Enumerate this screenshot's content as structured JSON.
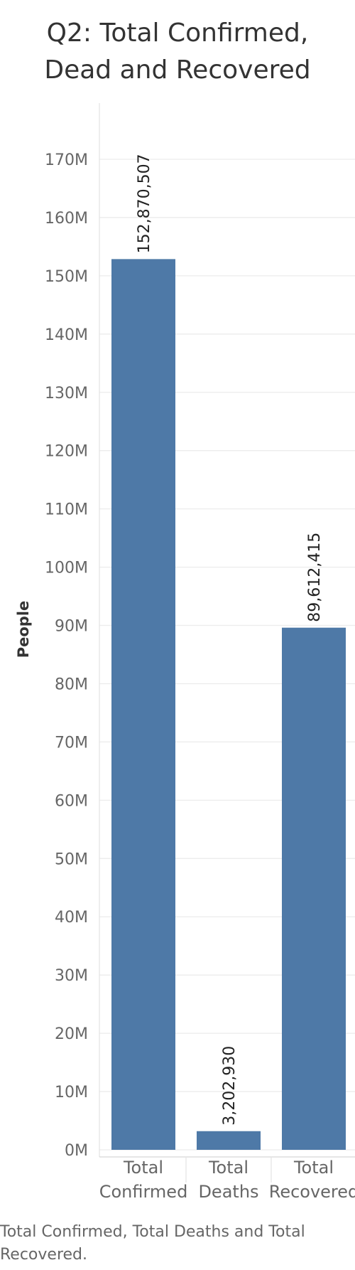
{
  "chart_data": {
    "type": "bar",
    "title_lines": [
      "Q2: Total Confirmed,",
      "Dead and Recovered"
    ],
    "ylabel": "People",
    "xlabel": "",
    "categories": [
      [
        "Total",
        "Confirmed"
      ],
      [
        "Total",
        "Deaths"
      ],
      [
        "Total",
        "Recovered"
      ]
    ],
    "values": [
      152870507,
      3202930,
      89612415
    ],
    "data_labels": [
      "152,870,507",
      "3,202,930",
      "89,612,415"
    ],
    "ylim": [
      0,
      170000000
    ],
    "yticks": [
      0,
      10000000,
      20000000,
      30000000,
      40000000,
      50000000,
      60000000,
      70000000,
      80000000,
      90000000,
      100000000,
      110000000,
      120000000,
      130000000,
      140000000,
      150000000,
      160000000,
      170000000
    ],
    "ytick_labels": [
      "0M",
      "10M",
      "20M",
      "30M",
      "40M",
      "50M",
      "60M",
      "70M",
      "80M",
      "90M",
      "100M",
      "110M",
      "120M",
      "130M",
      "140M",
      "150M",
      "160M",
      "170M"
    ],
    "grid": true,
    "bar_color": "#4e79a7"
  },
  "caption": "Total Confirmed, Total Deaths and Total Recovered."
}
